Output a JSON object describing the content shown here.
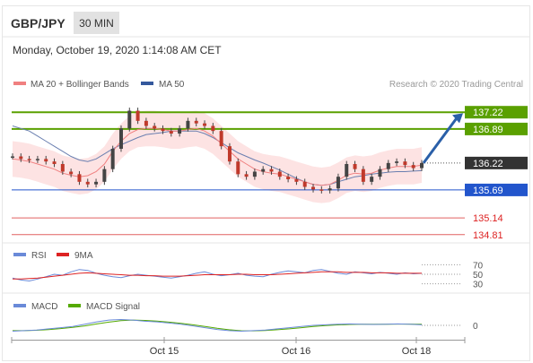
{
  "header": {
    "pair": "GBP/JPY",
    "interval": "30 MIN",
    "datetime": "Monday, October 19, 2020 1:14:08 AM CET"
  },
  "legend": {
    "ma20_label": "MA 20 + Bollinger Bands",
    "ma50_label": "MA 50",
    "credit": "Research © 2020 Trading Central",
    "rsi_label": "RSI",
    "rsi_ma_label": "9MA",
    "macd_label": "MACD",
    "macd_signal_label": "MACD Signal"
  },
  "colors": {
    "price_candle": "#c0392b",
    "bollinger_fill": "#fde3e3",
    "ma20": "#f08080",
    "ma50": "#6a7fb0",
    "resistance": "#5aa000",
    "pivot": "#2255cc",
    "support": "#e06060",
    "last_price": "#333333",
    "arrow": "#2a5fa8",
    "rsi": "#6a8ad8",
    "rsi_ma": "#dd2222",
    "macd": "#6a8ad8",
    "macd_signal": "#55aa00"
  },
  "chart_data": [
    {
      "type": "line",
      "title": "GBP/JPY",
      "x_ticks": [
        "Oct 15",
        "Oct 16",
        "Oct 18"
      ],
      "y_range": [
        134.7,
        137.7
      ],
      "levels": [
        {
          "value": 137.22,
          "label": "137.22",
          "kind": "resistance"
        },
        {
          "value": 136.89,
          "label": "136.89",
          "kind": "resistance"
        },
        {
          "value": 136.22,
          "label": "136.22",
          "kind": "last"
        },
        {
          "value": 135.69,
          "label": "135.69",
          "kind": "pivot"
        },
        {
          "value": 135.14,
          "label": "135.14",
          "kind": "support"
        },
        {
          "value": 134.81,
          "label": "134.81",
          "kind": "support"
        }
      ],
      "series": [
        {
          "name": "Price",
          "values": [
            136.35,
            136.3,
            136.28,
            136.3,
            136.25,
            136.2,
            136.05,
            136.0,
            135.85,
            135.8,
            135.85,
            136.1,
            136.5,
            136.9,
            137.25,
            137.05,
            136.95,
            136.9,
            136.85,
            136.8,
            136.9,
            137.05,
            137.0,
            136.95,
            136.85,
            136.55,
            136.25,
            136.0,
            135.95,
            136.05,
            136.1,
            136.05,
            135.95,
            135.9,
            135.85,
            135.75,
            135.7,
            135.68,
            135.72,
            135.95,
            136.2,
            136.1,
            135.85,
            135.95,
            136.1,
            136.22,
            136.25,
            136.18,
            136.12,
            136.22
          ]
        },
        {
          "name": "MA 20",
          "values": [
            136.3,
            136.28,
            136.25,
            136.2,
            136.15,
            136.1,
            136.02,
            135.98,
            135.95,
            135.97,
            136.05,
            136.2,
            136.45,
            136.65,
            136.8,
            136.88,
            136.9,
            136.9,
            136.88,
            136.85,
            136.85,
            136.88,
            136.9,
            136.85,
            136.75,
            136.6,
            136.45,
            136.3,
            136.2,
            136.1,
            136.05,
            136.02,
            136.0,
            135.95,
            135.9,
            135.85,
            135.8,
            135.78,
            135.8,
            135.88,
            135.98,
            136.02,
            136.0,
            136.02,
            136.08,
            136.12,
            136.15,
            136.15,
            136.15,
            136.18
          ]
        },
        {
          "name": "MA 50",
          "values": [
            136.95,
            136.9,
            136.85,
            136.75,
            136.65,
            136.55,
            136.45,
            136.35,
            136.28,
            136.25,
            136.3,
            136.4,
            136.5,
            136.58,
            136.65,
            136.72,
            136.78,
            136.8,
            136.82,
            136.85,
            136.85,
            136.85,
            136.85,
            136.8,
            136.72,
            136.62,
            136.52,
            136.42,
            136.35,
            136.28,
            136.22,
            136.15,
            136.08,
            136.0,
            135.92,
            135.85,
            135.8,
            135.78,
            135.8,
            135.85,
            135.9,
            135.95,
            135.97,
            136.0,
            136.02,
            136.04,
            136.05,
            136.05,
            136.06,
            136.07
          ]
        }
      ]
    },
    {
      "type": "line",
      "title": "RSI",
      "y_ticks": [
        "70",
        "50",
        "30"
      ],
      "y_range": [
        0,
        100
      ],
      "series": [
        {
          "name": "RSI",
          "values": [
            42,
            38,
            36,
            40,
            45,
            50,
            48,
            55,
            60,
            58,
            52,
            48,
            45,
            43,
            47,
            50,
            48,
            46,
            44,
            42,
            45,
            48,
            52,
            55,
            50,
            47,
            49,
            52,
            48,
            46,
            45,
            50,
            54,
            57,
            55,
            53,
            58,
            60,
            56,
            52,
            50,
            55,
            53,
            51,
            54,
            52,
            50,
            53,
            51,
            52
          ]
        },
        {
          "name": "9MA",
          "values": [
            40,
            40,
            41,
            42,
            44,
            46,
            48,
            50,
            52,
            53,
            52,
            51,
            50,
            49,
            48,
            48,
            47,
            47,
            46,
            46,
            46,
            47,
            48,
            49,
            49,
            49,
            49,
            50,
            50,
            49,
            49,
            49,
            50,
            51,
            52,
            53,
            54,
            55,
            55,
            55,
            54,
            54,
            54,
            53,
            53,
            53,
            52,
            52,
            52,
            52
          ]
        }
      ]
    },
    {
      "type": "line",
      "title": "MACD",
      "y_ticks": [
        "0"
      ],
      "y_range": [
        -1,
        1
      ],
      "series": [
        {
          "name": "MACD",
          "values": [
            -0.5,
            -0.45,
            -0.4,
            -0.3,
            -0.2,
            -0.1,
            0.1,
            0.3,
            0.45,
            0.5,
            0.45,
            0.35,
            0.3,
            0.2,
            0.1,
            -0.05,
            -0.2,
            -0.35,
            -0.45,
            -0.5,
            -0.45,
            -0.4,
            -0.3,
            -0.2,
            -0.1,
            0.0,
            0.05,
            0.1,
            0.12,
            0.1,
            0.08,
            0.1,
            0.12,
            0.1,
            0.05
          ]
        },
        {
          "name": "MACD Signal",
          "values": [
            -0.45,
            -0.45,
            -0.42,
            -0.36,
            -0.28,
            -0.18,
            -0.05,
            0.12,
            0.28,
            0.4,
            0.45,
            0.42,
            0.36,
            0.28,
            0.18,
            0.05,
            -0.1,
            -0.25,
            -0.38,
            -0.46,
            -0.47,
            -0.44,
            -0.38,
            -0.3,
            -0.2,
            -0.1,
            -0.02,
            0.04,
            0.08,
            0.1,
            0.1,
            0.1,
            0.11,
            0.11,
            0.09
          ]
        }
      ]
    }
  ]
}
